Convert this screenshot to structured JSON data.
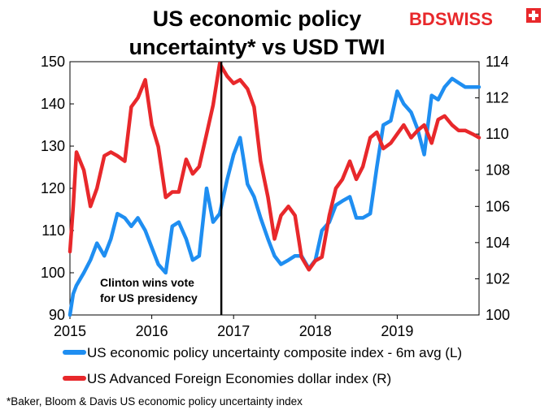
{
  "title_lines": [
    "US economic policy",
    "uncertainty* vs USD TWI"
  ],
  "brand": {
    "bd": "BD",
    "swiss": "SWISS",
    "red": "#e8282b"
  },
  "footnote": "*Baker, Bloom & Davis US economic policy uncertainty index",
  "event_label": [
    "Clinton wins vote",
    "for US presidency"
  ],
  "chart_data": {
    "type": "line",
    "x_ticks": [
      "2015",
      "2016",
      "2017",
      "2018",
      "2019"
    ],
    "x_range": [
      2015.0,
      2020.0
    ],
    "event_x": 2016.85,
    "left_axis": {
      "ylim": [
        90,
        150
      ],
      "ticks": [
        90,
        100,
        110,
        120,
        130,
        140,
        150
      ]
    },
    "right_axis": {
      "ylim": [
        100,
        114
      ],
      "ticks": [
        100,
        102,
        104,
        106,
        108,
        110,
        112,
        114
      ]
    },
    "series": [
      {
        "name": "US economic policy uncertainty composite index - 6m avg (L)",
        "axis": "left",
        "color": "#1f8ef1",
        "x": [
          2015.0,
          2015.04,
          2015.08,
          2015.17,
          2015.25,
          2015.33,
          2015.42,
          2015.5,
          2015.58,
          2015.67,
          2015.75,
          2015.83,
          2015.92,
          2016.0,
          2016.08,
          2016.17,
          2016.25,
          2016.33,
          2016.42,
          2016.5,
          2016.58,
          2016.67,
          2016.75,
          2016.83,
          2016.92,
          2017.0,
          2017.08,
          2017.17,
          2017.25,
          2017.33,
          2017.42,
          2017.5,
          2017.58,
          2017.67,
          2017.75,
          2017.83,
          2017.92,
          2018.0,
          2018.08,
          2018.17,
          2018.25,
          2018.33,
          2018.42,
          2018.5,
          2018.58,
          2018.67,
          2018.75,
          2018.83,
          2018.92,
          2019.0,
          2019.08,
          2019.17,
          2019.25,
          2019.33,
          2019.42,
          2019.5,
          2019.58,
          2019.67,
          2019.75,
          2019.83,
          2019.92,
          2020.0
        ],
        "values": [
          90,
          95,
          97,
          100,
          103,
          107,
          104,
          108,
          114,
          113,
          111,
          113,
          110,
          106,
          102,
          100,
          111,
          112,
          108,
          103,
          104,
          120,
          112,
          114,
          122,
          128,
          132,
          121,
          118,
          113,
          108,
          104,
          102,
          103,
          104,
          104,
          101,
          103,
          110,
          112,
          116,
          117,
          118,
          113,
          113,
          114,
          125,
          135,
          136,
          143,
          140,
          138,
          134,
          128,
          142,
          141,
          144,
          146,
          145,
          144,
          144,
          144
        ]
      },
      {
        "name": "US Advanced Foreign Economies dollar index (R)",
        "axis": "right",
        "color": "#e8282b",
        "x": [
          2015.0,
          2015.04,
          2015.08,
          2015.17,
          2015.25,
          2015.33,
          2015.42,
          2015.5,
          2015.58,
          2015.67,
          2015.75,
          2015.83,
          2015.92,
          2016.0,
          2016.08,
          2016.17,
          2016.25,
          2016.33,
          2016.42,
          2016.5,
          2016.58,
          2016.67,
          2016.75,
          2016.83,
          2016.92,
          2017.0,
          2017.08,
          2017.17,
          2017.25,
          2017.33,
          2017.42,
          2017.5,
          2017.58,
          2017.67,
          2017.75,
          2017.83,
          2017.92,
          2018.0,
          2018.08,
          2018.17,
          2018.25,
          2018.33,
          2018.42,
          2018.5,
          2018.58,
          2018.67,
          2018.75,
          2018.83,
          2018.92,
          2019.0,
          2019.08,
          2019.17,
          2019.25,
          2019.33,
          2019.42,
          2019.5,
          2019.58,
          2019.67,
          2019.75,
          2019.83,
          2019.92,
          2020.0
        ],
        "values": [
          103.5,
          106,
          109,
          108,
          106,
          107,
          108.8,
          109,
          108.8,
          108.5,
          111.5,
          112,
          113,
          110.5,
          109.3,
          106.5,
          106.8,
          106.8,
          108.6,
          107.8,
          108.2,
          110,
          111.6,
          113.9,
          113.2,
          112.8,
          113,
          112.5,
          111.5,
          108.5,
          106.5,
          104.2,
          105.5,
          106,
          105.5,
          103.2,
          102.5,
          103,
          103.2,
          105.5,
          107,
          107.5,
          108.5,
          107.5,
          108.2,
          109.8,
          110.1,
          109.2,
          109.5,
          110,
          110.5,
          109.8,
          110.2,
          110.5,
          109.5,
          110.8,
          111,
          110.5,
          110.2,
          110.2,
          110,
          109.8
        ]
      }
    ]
  }
}
